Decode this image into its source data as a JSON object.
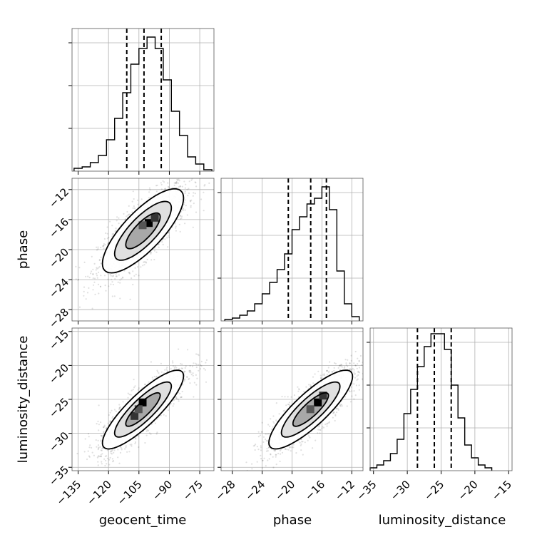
{
  "chart_data": {
    "type": "corner",
    "parameters": [
      "geocent_time",
      "phase",
      "luminosity_distance"
    ],
    "grid": true,
    "axes": {
      "geocent_time": {
        "label": "geocent_time",
        "range": [
          -138,
          -68
        ],
        "ticks": [
          -135,
          -120,
          -105,
          -90,
          -75
        ]
      },
      "phase": {
        "label": "phase",
        "range": [
          -29.5,
          -10.5
        ],
        "ticks": [
          -28,
          -24,
          -20,
          -16,
          -12
        ]
      },
      "luminosity_distance": {
        "label": "luminosity_distance",
        "range": [
          -35.5,
          -14.5
        ],
        "ticks": [
          -35,
          -30,
          -25,
          -20,
          -15
        ]
      }
    },
    "histograms": [
      {
        "param": "geocent_time",
        "bin_edges": [
          -137,
          -133,
          -129,
          -125,
          -121,
          -117,
          -113,
          -109,
          -105,
          -101,
          -97,
          -93,
          -89,
          -85,
          -81,
          -77,
          -73,
          -69
        ],
        "counts": [
          0.02,
          0.03,
          0.06,
          0.11,
          0.22,
          0.37,
          0.55,
          0.75,
          0.86,
          0.94,
          0.86,
          0.64,
          0.42,
          0.25,
          0.1,
          0.05,
          0.01
        ],
        "quantiles": [
          -111,
          -102.5,
          -94
        ]
      },
      {
        "param": "phase",
        "bin_edges": [
          -29,
          -28,
          -27,
          -26,
          -25,
          -24,
          -23,
          -22,
          -21,
          -20,
          -19,
          -18,
          -17,
          -16,
          -15,
          -14,
          -13,
          -12,
          -11
        ],
        "counts": [
          0.01,
          0.02,
          0.04,
          0.07,
          0.12,
          0.19,
          0.27,
          0.36,
          0.47,
          0.64,
          0.73,
          0.82,
          0.86,
          0.94,
          0.78,
          0.35,
          0.12,
          0.03
        ],
        "quantiles": [
          -20.5,
          -17.5,
          -15.4
        ]
      },
      {
        "param": "luminosity_distance",
        "bin_edges": [
          -35.5,
          -34.5,
          -33.5,
          -32.5,
          -31.5,
          -30.5,
          -29.5,
          -28.5,
          -27.5,
          -26.5,
          -25.5,
          -24.5,
          -23.5,
          -22.5,
          -21.5,
          -20.5,
          -19.5,
          -18.5,
          -17.5
        ],
        "counts": [
          0.02,
          0.04,
          0.07,
          0.12,
          0.22,
          0.4,
          0.57,
          0.73,
          0.87,
          0.96,
          0.96,
          0.85,
          0.6,
          0.37,
          0.18,
          0.09,
          0.04,
          0.02
        ],
        "quantiles": [
          -28.5,
          -26,
          -23.5
        ]
      }
    ],
    "scatter_panels": [
      {
        "x": "geocent_time",
        "y": "phase",
        "mean": [
          -103,
          -17.5
        ],
        "sd": [
          10,
          2.8
        ],
        "correlation": 0.78,
        "density_peaks": [
          [
            -100,
            -16.5
          ],
          [
            -97,
            -15.8
          ],
          [
            -103,
            -16.8
          ]
        ]
      },
      {
        "x": "geocent_time",
        "y": "luminosity_distance",
        "mean": [
          -103,
          -26.5
        ],
        "sd": [
          10,
          2.9
        ],
        "correlation": 0.85,
        "density_peaks": [
          [
            -103,
            -25.5
          ],
          [
            -107,
            -27.5
          ],
          [
            -105,
            -26.5
          ]
        ]
      },
      {
        "x": "phase",
        "y": "luminosity_distance",
        "mean": [
          -17.5,
          -26.5
        ],
        "sd": [
          2.8,
          2.9
        ],
        "correlation": 0.84,
        "density_peaks": [
          [
            -16.5,
            -25.5
          ],
          [
            -15.8,
            -24.5
          ],
          [
            -17.5,
            -26.5
          ]
        ]
      }
    ]
  }
}
